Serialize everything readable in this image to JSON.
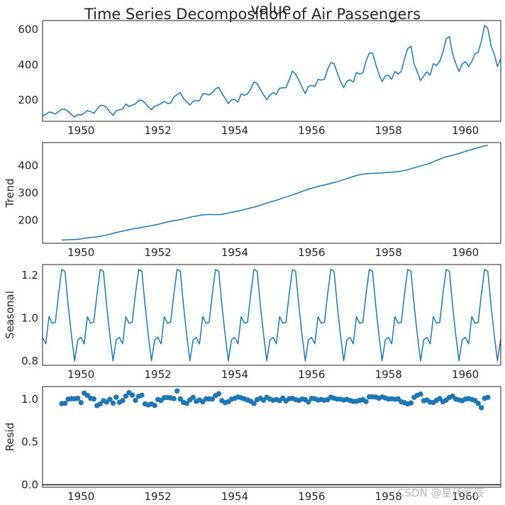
{
  "figure": {
    "suptitle": "Time Series Decomposition of Air Passengers",
    "top_label": "value",
    "watermark": "CSDN @星环汇辰"
  },
  "colors": {
    "line": "#1f77b4",
    "axes": "#262626",
    "background": "#ffffff"
  },
  "chart_data": [
    {
      "type": "line",
      "name": "observed",
      "ylabel": "",
      "start": "1949-01",
      "frequency": "monthly",
      "xlim": [
        1949.0,
        1960.92
      ],
      "ylim": [
        80,
        650
      ],
      "xticks": [
        "1950",
        "1952",
        "1954",
        "1956",
        "1958",
        "1960"
      ],
      "yticks": [
        "200",
        "400",
        "600"
      ],
      "values": [
        112,
        118,
        132,
        129,
        121,
        135,
        148,
        148,
        136,
        119,
        104,
        118,
        115,
        126,
        141,
        135,
        125,
        149,
        170,
        170,
        158,
        133,
        114,
        140,
        145,
        150,
        178,
        163,
        172,
        178,
        199,
        199,
        184,
        162,
        146,
        166,
        171,
        180,
        193,
        181,
        183,
        218,
        230,
        242,
        209,
        191,
        172,
        194,
        196,
        196,
        236,
        235,
        229,
        243,
        264,
        272,
        237,
        211,
        180,
        201,
        204,
        188,
        235,
        227,
        234,
        264,
        302,
        293,
        259,
        229,
        203,
        229,
        242,
        233,
        267,
        269,
        270,
        315,
        364,
        347,
        312,
        274,
        237,
        278,
        284,
        277,
        317,
        313,
        318,
        374,
        413,
        405,
        355,
        306,
        271,
        306,
        315,
        301,
        356,
        348,
        355,
        422,
        465,
        467,
        404,
        347,
        305,
        336,
        340,
        318,
        362,
        348,
        363,
        435,
        491,
        505,
        404,
        359,
        310,
        337,
        360,
        342,
        406,
        396,
        420,
        472,
        548,
        559,
        463,
        407,
        362,
        405,
        417,
        391,
        419,
        461,
        472,
        535,
        622,
        606,
        508,
        461,
        390,
        432
      ]
    },
    {
      "type": "line",
      "name": "trend",
      "ylabel": "Trend",
      "start": "1949-07",
      "frequency": "monthly",
      "xlim": [
        1949.0,
        1960.92
      ],
      "ylim": [
        115,
        485
      ],
      "xticks": [
        "1950",
        "1952",
        "1954",
        "1956",
        "1958",
        "1960"
      ],
      "yticks": [
        "200",
        "300",
        "400"
      ],
      "values": [
        126.79,
        127.25,
        127.96,
        128.58,
        129.0,
        129.75,
        131.25,
        133.08,
        134.92,
        136.42,
        137.42,
        138.75,
        140.92,
        143.17,
        145.71,
        148.42,
        151.54,
        154.71,
        157.13,
        159.54,
        161.83,
        164.79,
        167.29,
        169.46,
        171.5,
        173.38,
        175.46,
        177.5,
        179.79,
        182.21,
        184.46,
        187.5,
        190.63,
        193.58,
        196.08,
        198.04,
        199.75,
        202.21,
        205.04,
        207.63,
        210.54,
        213.0,
        215.08,
        217.88,
        219.13,
        219.79,
        220.38,
        220.5,
        220.33,
        220.25,
        221.5,
        223.5,
        226.17,
        228.71,
        231.21,
        233.46,
        235.83,
        238.79,
        241.96,
        244.92,
        247.42,
        251.17,
        255.17,
        258.92,
        262.67,
        266.29,
        269.75,
        273.08,
        277.08,
        281.25,
        284.79,
        288.38,
        292.58,
        296.75,
        301.0,
        305.46,
        309.71,
        313.63,
        317.29,
        320.63,
        323.71,
        326.54,
        329.38,
        332.33,
        335.17,
        338.04,
        341.21,
        344.83,
        348.67,
        352.54,
        356.29,
        360.21,
        363.83,
        366.83,
        369.04,
        370.5,
        371.21,
        371.92,
        372.33,
        372.75,
        373.46,
        374.46,
        375.38,
        376.0,
        376.96,
        378.42,
        380.21,
        382.25,
        385.17,
        388.79,
        392.29,
        395.58,
        398.83,
        401.83,
        405.46,
        409.5,
        414.08,
        419.25,
        424.0,
        428.75,
        432.58,
        435.58,
        438.25,
        441.38,
        445.0,
        448.71,
        452.54,
        456.29,
        459.75,
        463.13,
        466.5,
        469.33,
        472.75,
        475.04
      ]
    },
    {
      "type": "line",
      "name": "seasonal",
      "ylabel": "Seasonal",
      "start": "1949-01",
      "frequency": "monthly",
      "xlim": [
        1949.0,
        1960.92
      ],
      "ylim": [
        0.78,
        1.25
      ],
      "xticks": [
        "1950",
        "1952",
        "1954",
        "1956",
        "1958",
        "1960"
      ],
      "yticks": [
        "0.8",
        "1.0",
        "1.2"
      ],
      "pattern": [
        0.91,
        0.88,
        1.007,
        0.976,
        0.981,
        1.113,
        1.227,
        1.219,
        1.06,
        0.922,
        0.801,
        0.899
      ],
      "years": 12
    },
    {
      "type": "scatter",
      "name": "resid",
      "ylabel": "Resid",
      "start": "1949-07",
      "frequency": "monthly",
      "xlim": [
        1949.0,
        1960.92
      ],
      "ylim": [
        -0.03,
        1.15
      ],
      "xticks": [
        "1950",
        "1952",
        "1954",
        "1956",
        "1958",
        "1960"
      ],
      "yticks": [
        "0.0",
        "0.5",
        "1.0"
      ],
      "baseline": 0,
      "values": [
        0.951,
        0.953,
        1.002,
        1.008,
        1.007,
        1.013,
        0.962,
        1.073,
        1.046,
        1.012,
        1.005,
        0.927,
        0.946,
        0.984,
        0.968,
        1.0,
        0.956,
        1.026,
        0.965,
        0.986,
        1.038,
        1.078,
        1.05,
        0.989,
        1.036,
        1.049,
        0.946,
        0.935,
        0.946,
        0.929,
        0.998,
        0.987,
        1.019,
        1.022,
        1.017,
        1.009,
        1.098,
        1.006,
        0.964,
        0.953,
        0.994,
        1.024,
        0.977,
        0.993,
        0.971,
        1.006,
        1.005,
        1.004,
        1.045,
        1.065,
        0.985,
        0.961,
        0.973,
        1.002,
        1.012,
        1.028,
        1.018,
        1.006,
        0.993,
        0.977,
        0.952,
        0.997,
        1.013,
        0.99,
        1.024,
        1.003,
        0.989,
        0.998,
        0.985,
        1.014,
        0.981,
        1.008,
        1.012,
        0.998,
        0.988,
        1.004,
        0.997,
        0.969,
        1.011,
        1.007,
        0.992,
        0.998,
        0.99,
        0.996,
        1.025,
        1.013,
        1.003,
        1.002,
        0.992,
        1.0,
        0.986,
        0.976,
        0.977,
        0.988,
        0.996,
        0.974,
        1.029,
        1.03,
        1.027,
        1.013,
        1.028,
        1.016,
        1.004,
        1.007,
        1.001,
        1.006,
        0.972,
        0.96,
        0.947,
        0.958,
        1.024,
        1.048,
        1.062,
        0.984,
        0.993,
        0.968,
        0.963,
        0.989,
        1.01,
        0.972,
        0.991,
        1.022,
        1.038,
        1.003,
        0.993,
        0.984,
        1.003,
        1.009,
        0.999,
        0.987,
        0.952,
        0.902,
        1.012,
        1.023
      ]
    }
  ]
}
